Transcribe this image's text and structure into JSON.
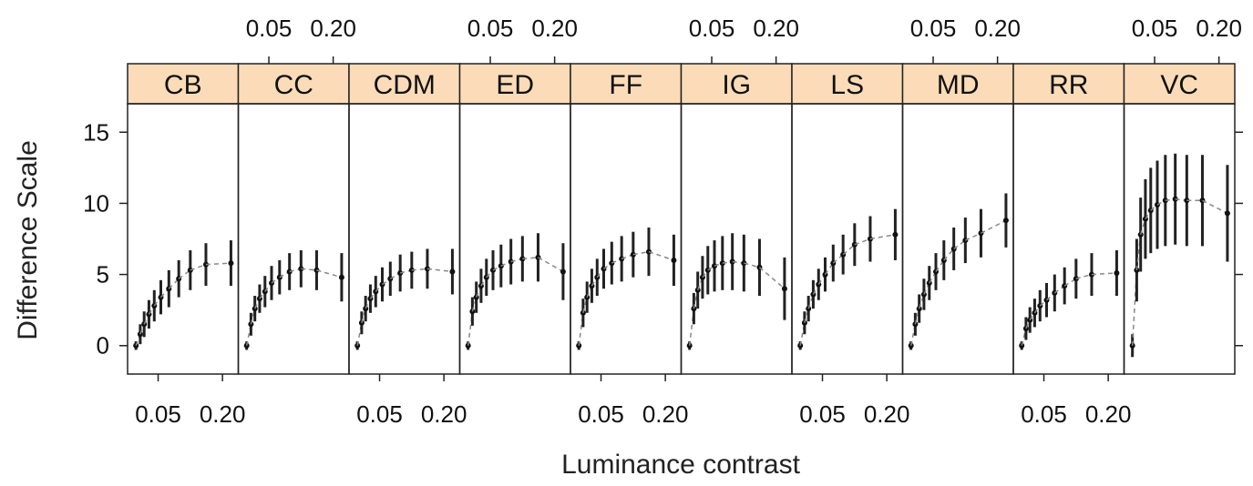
{
  "chart_data": {
    "type": "scatter",
    "xlabel": "Luminance contrast",
    "ylabel": "Difference Scale",
    "x_scale": "log",
    "xlim": [
      0.028,
      0.26
    ],
    "ylim": [
      -2,
      17
    ],
    "x_ticks": [
      0.05,
      0.2
    ],
    "x_tick_labels": [
      "0.05",
      "0.20"
    ],
    "y_ticks": [
      0,
      5,
      10,
      15
    ],
    "y_tick_labels": [
      "0",
      "5",
      "10",
      "15"
    ],
    "strip_color": "#fcdcb8",
    "x": [
      0.031,
      0.034,
      0.037,
      0.041,
      0.046,
      0.053,
      0.063,
      0.078,
      0.1,
      0.14,
      0.24
    ],
    "panels": [
      {
        "name": "CB",
        "y": [
          0,
          0.8,
          1.5,
          2.2,
          2.8,
          3.4,
          4.0,
          4.7,
          5.3,
          5.7,
          5.8
        ],
        "err": [
          0.3,
          0.7,
          0.9,
          1.0,
          1.1,
          1.2,
          1.3,
          1.3,
          1.4,
          1.5,
          1.6
        ]
      },
      {
        "name": "CC",
        "y": [
          0,
          1.5,
          2.6,
          3.3,
          3.8,
          4.4,
          4.8,
          5.2,
          5.4,
          5.3,
          4.8
        ],
        "err": [
          0.3,
          0.8,
          0.9,
          1.0,
          1.1,
          1.2,
          1.2,
          1.3,
          1.3,
          1.4,
          1.7
        ]
      },
      {
        "name": "CDM",
        "y": [
          0,
          1.6,
          2.6,
          3.3,
          3.8,
          4.3,
          4.7,
          5.1,
          5.3,
          5.4,
          5.2
        ],
        "err": [
          0.3,
          0.8,
          0.9,
          1.0,
          1.1,
          1.2,
          1.2,
          1.3,
          1.3,
          1.4,
          1.6
        ]
      },
      {
        "name": "ED",
        "y": [
          0,
          2.4,
          3.4,
          4.2,
          4.8,
          5.3,
          5.6,
          5.9,
          6.1,
          6.2,
          5.2
        ],
        "err": [
          0.3,
          1.0,
          1.1,
          1.2,
          1.3,
          1.4,
          1.5,
          1.6,
          1.6,
          1.7,
          2.0
        ]
      },
      {
        "name": "FF",
        "y": [
          0,
          2.3,
          3.4,
          4.2,
          4.8,
          5.4,
          5.8,
          6.1,
          6.4,
          6.6,
          6.0
        ],
        "err": [
          0.3,
          1.0,
          1.1,
          1.2,
          1.3,
          1.4,
          1.5,
          1.6,
          1.6,
          1.7,
          1.8
        ]
      },
      {
        "name": "IG",
        "y": [
          0,
          2.6,
          3.9,
          4.8,
          5.3,
          5.6,
          5.8,
          5.9,
          5.8,
          5.5,
          4.0
        ],
        "err": [
          0.3,
          1.1,
          1.3,
          1.5,
          1.7,
          1.8,
          1.9,
          2.0,
          2.0,
          2.0,
          2.2
        ]
      },
      {
        "name": "LS",
        "y": [
          0,
          1.6,
          2.6,
          3.6,
          4.3,
          5.0,
          5.8,
          6.4,
          7.1,
          7.5,
          7.8
        ],
        "err": [
          0.3,
          0.8,
          0.9,
          1.0,
          1.1,
          1.2,
          1.3,
          1.4,
          1.5,
          1.6,
          1.8
        ]
      },
      {
        "name": "MD",
        "y": [
          0,
          1.5,
          2.6,
          3.6,
          4.4,
          5.2,
          6.0,
          6.8,
          7.4,
          7.9,
          8.8
        ],
        "err": [
          0.3,
          0.8,
          1.0,
          1.1,
          1.2,
          1.3,
          1.4,
          1.5,
          1.6,
          1.7,
          1.9
        ]
      },
      {
        "name": "RR",
        "y": [
          0,
          1.2,
          1.8,
          2.3,
          2.8,
          3.2,
          3.7,
          4.2,
          4.7,
          5.0,
          5.1
        ],
        "err": [
          0.3,
          0.8,
          0.9,
          1.0,
          1.1,
          1.2,
          1.3,
          1.3,
          1.4,
          1.5,
          1.6
        ]
      },
      {
        "name": "VC",
        "y": [
          0,
          5.3,
          7.8,
          8.9,
          9.5,
          9.9,
          10.2,
          10.3,
          10.2,
          10.2,
          9.3
        ],
        "err": [
          0.8,
          2.2,
          2.6,
          2.8,
          3.0,
          3.1,
          3.2,
          3.2,
          3.2,
          3.2,
          3.4
        ]
      }
    ]
  }
}
